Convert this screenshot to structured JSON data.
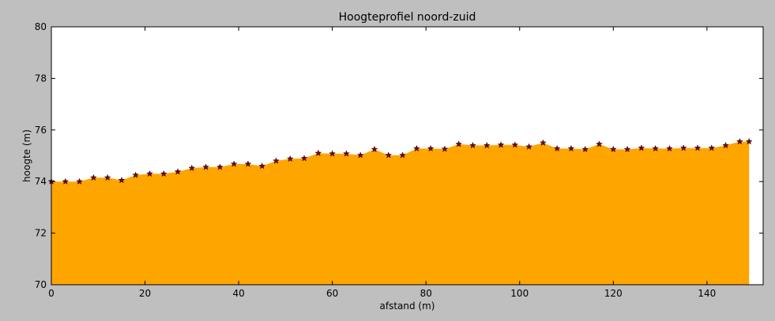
{
  "chart_data": {
    "type": "area",
    "title": "Hoogteprofiel noord-zuid",
    "xlabel": "afstand (m)",
    "ylabel": "hoogte (m)",
    "xlim": [
      0,
      152
    ],
    "ylim": [
      70,
      80
    ],
    "xticks": [
      0,
      20,
      40,
      60,
      80,
      100,
      120,
      140
    ],
    "yticks": [
      70,
      72,
      74,
      76,
      78,
      80
    ],
    "grid": false,
    "colors": {
      "figure_background": "#bfbfbf",
      "axes_background": "#ffffff",
      "fill": "#ffa500",
      "marker": "#800000"
    },
    "marker_symbol": "star",
    "x": [
      0,
      3,
      6,
      9,
      12,
      15,
      18,
      21,
      24,
      27,
      30,
      33,
      36,
      39,
      42,
      45,
      48,
      51,
      54,
      57,
      60,
      63,
      66,
      69,
      72,
      75,
      78,
      81,
      84,
      87,
      90,
      93,
      96,
      99,
      102,
      105,
      108,
      111,
      114,
      117,
      120,
      123,
      126,
      129,
      132,
      135,
      138,
      141,
      144,
      147,
      149
    ],
    "y": [
      74.0,
      74.0,
      74.0,
      74.15,
      74.15,
      74.05,
      74.25,
      74.3,
      74.3,
      74.38,
      74.52,
      74.56,
      74.56,
      74.68,
      74.68,
      74.6,
      74.8,
      74.88,
      74.9,
      75.1,
      75.08,
      75.08,
      75.02,
      75.25,
      75.02,
      75.02,
      75.28,
      75.28,
      75.26,
      75.45,
      75.4,
      75.4,
      75.42,
      75.42,
      75.35,
      75.5,
      75.28,
      75.28,
      75.25,
      75.45,
      75.25,
      75.25,
      75.3,
      75.28,
      75.28,
      75.3,
      75.3,
      75.3,
      75.4,
      75.55,
      75.55
    ]
  }
}
